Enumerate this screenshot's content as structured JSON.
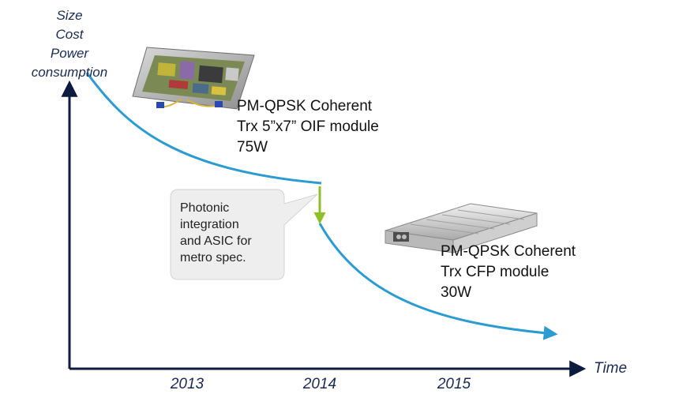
{
  "y_axis": {
    "lines": [
      "Size",
      "Cost",
      "Power",
      "consumption"
    ]
  },
  "x_axis": {
    "title": "Time",
    "ticks": [
      "2013",
      "2014",
      "2015"
    ]
  },
  "modules": [
    {
      "lines": [
        "PM-QPSK Coherent",
        "Trx 5”x7” OIF module",
        "75W"
      ]
    },
    {
      "lines": [
        "PM-QPSK Coherent",
        "Trx CFP module",
        "30W"
      ]
    }
  ],
  "callout": {
    "lines": [
      "Photonic",
      "integration",
      "and ASIC for",
      "metro spec."
    ]
  },
  "colors": {
    "axis": "#0d1b3e",
    "curve": "#2b9bd1",
    "step_arrow": "#8fbf26",
    "callout_fill": "#eeeeee"
  }
}
